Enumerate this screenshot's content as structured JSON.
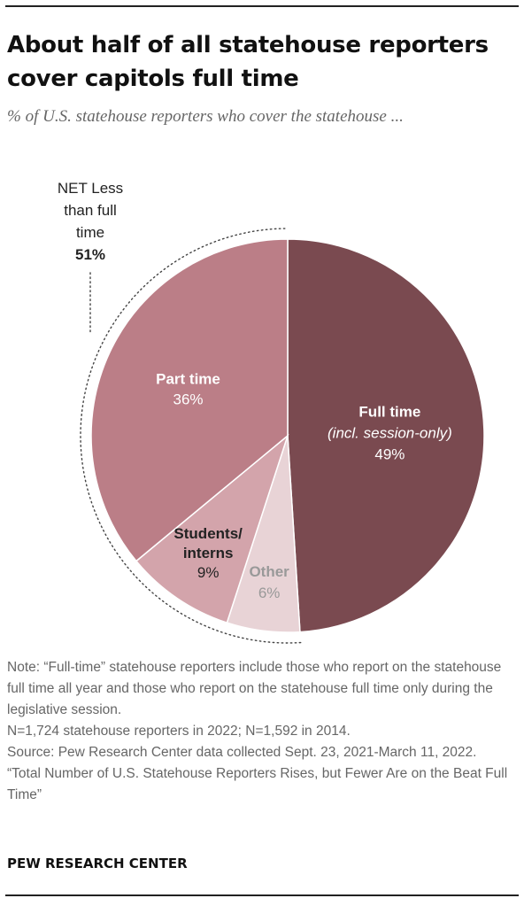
{
  "title": "About half of all statehouse reporters cover capitols full time",
  "subtitle": "% of U.S. statehouse reporters who cover the statehouse ...",
  "chart_data": {
    "type": "pie",
    "slices": [
      {
        "label_lines": [
          "Full time",
          "(incl. session-only)"
        ],
        "value": 49,
        "value_label": "49%",
        "color": "#7a4a50",
        "label_color": "#ffffff",
        "value_color": "#ffffff"
      },
      {
        "label_lines": [
          "Other"
        ],
        "value": 6,
        "value_label": "6%",
        "color": "#e8d3d6",
        "label_color": "#999999",
        "value_color": "#999999"
      },
      {
        "label_lines": [
          "Students/",
          "interns"
        ],
        "value": 9,
        "value_label": "9%",
        "color": "#d3a4ab",
        "label_color": "#222222",
        "value_color": "#222222"
      },
      {
        "label_lines": [
          "Part time"
        ],
        "value": 36,
        "value_label": "36%",
        "color": "#bb7e87",
        "label_color": "#ffffff",
        "value_color": "#ffffff"
      }
    ],
    "net_annotation": {
      "label_lines": [
        "NET Less",
        "than full",
        "time"
      ],
      "value_label": "51%"
    }
  },
  "notes": [
    "Note: “Full-time” statehouse reporters include those who report on the statehouse full time all year and those who report on the statehouse full time only during the legislative session.",
    "N=1,724 statehouse reporters in 2022; N=1,592 in 2014.",
    "Source: Pew Research Center data collected Sept. 23, 2021-March 11, 2022.",
    "“Total Number of U.S. Statehouse Reporters Rises, but Fewer Are on the Beat Full Time”"
  ],
  "brand": "PEW RESEARCH CENTER"
}
